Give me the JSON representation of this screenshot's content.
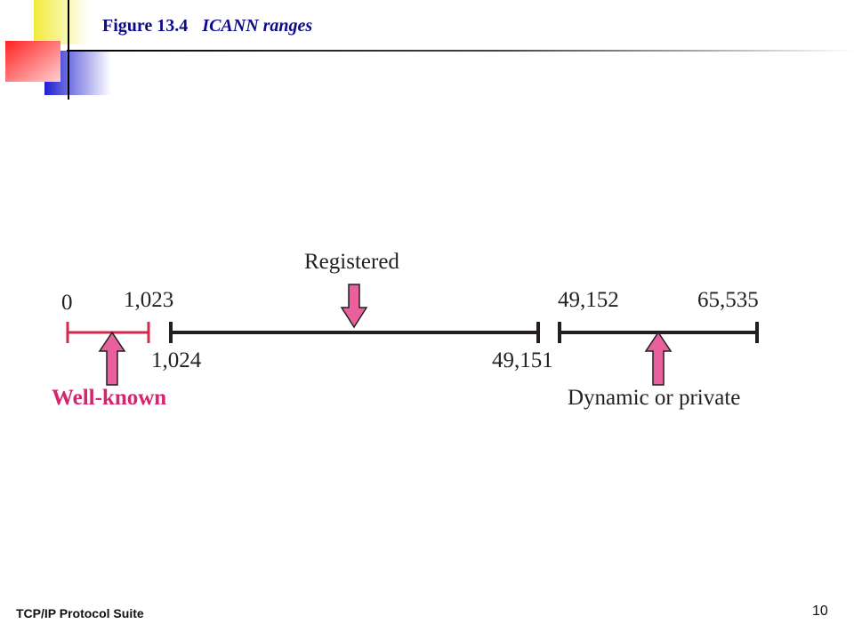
{
  "slide": {
    "figure_number": "Figure 13.4",
    "figure_caption": "ICANN ranges",
    "footer": "TCP/IP Protocol Suite",
    "page_number": "10"
  },
  "diagram": {
    "range_labels": {
      "well_known": "Well-known",
      "registered": "Registered",
      "dynamic": "Dynamic or private"
    },
    "ticks": {
      "t0": "0",
      "t1023": "1,023",
      "t1024": "1,024",
      "t49151": "49,151",
      "t49152": "49,152",
      "t65535": "65,535"
    },
    "colors": {
      "well_known_line": "#d22a4a",
      "registered_line": "#231f20",
      "arrow_fill": "#e9609c",
      "well_known_text": "#d6246e"
    }
  }
}
